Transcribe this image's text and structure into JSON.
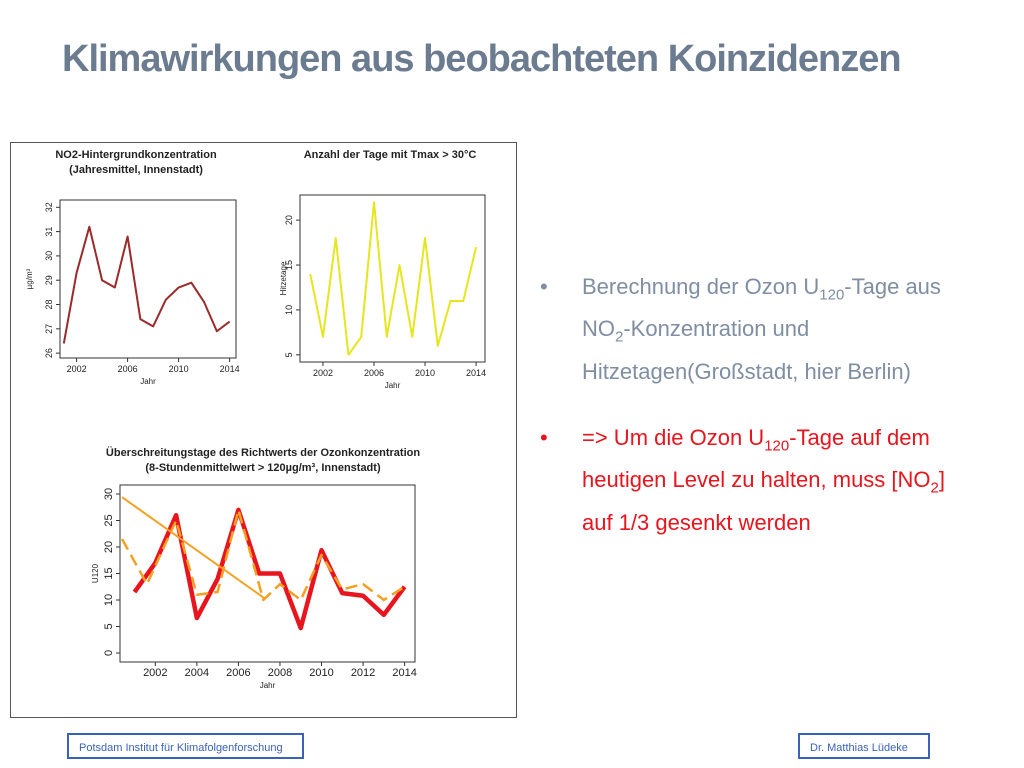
{
  "title": "Klimawirkungen aus beobachteten Koinzidenzen",
  "chart_data": [
    {
      "type": "line",
      "title": [
        "NO2-Hintergrundkonzentration",
        "(Jahresmittel, Innenstadt)"
      ],
      "x_label": "Jahr",
      "y_label": "µg/m³",
      "x": [
        2001,
        2002,
        2003,
        2004,
        2005,
        2006,
        2007,
        2008,
        2009,
        2010,
        2011,
        2012,
        2013,
        2014
      ],
      "series": [
        {
          "color": "#9b2a2a",
          "style": "solid",
          "values": [
            26.4,
            29.3,
            31.2,
            29.0,
            28.7,
            30.8,
            27.4,
            27.1,
            28.2,
            28.7,
            28.9,
            28.1,
            26.9,
            27.3
          ]
        }
      ],
      "xlim": [
        2000.7,
        2014.5
      ],
      "xticks": [
        2002,
        2006,
        2010,
        2014
      ],
      "ylim": [
        25.8,
        32.3
      ],
      "yticks": [
        26,
        27,
        28,
        29,
        30,
        31,
        32
      ]
    },
    {
      "type": "line",
      "title": [
        "Anzahl der Tage mit Tmax > 30°C"
      ],
      "x_label": "Jahr",
      "y_label": "Hitzetage",
      "x": [
        2001,
        2002,
        2003,
        2004,
        2005,
        2006,
        2007,
        2008,
        2009,
        2010,
        2011,
        2012,
        2013,
        2014
      ],
      "series": [
        {
          "color": "#e6e61e",
          "style": "solid",
          "values": [
            14,
            7,
            18,
            5,
            7,
            22,
            7,
            15,
            7,
            18,
            6,
            11,
            11,
            17
          ]
        }
      ],
      "xlim": [
        2000.2,
        2014.7
      ],
      "xticks": [
        2002,
        2006,
        2010,
        2014
      ],
      "ylim": [
        4.2,
        22.8
      ],
      "yticks": [
        5,
        10,
        15,
        20
      ]
    },
    {
      "type": "line",
      "title": [
        "Überschreitungstage des Richtwerts der Ozonkonzentration",
        "(8-Stundenmittelwert > 120µg/m³, Innenstadt)"
      ],
      "x_label": "Jahr",
      "y_label": "U120",
      "x": [
        2001,
        2002,
        2003,
        2004,
        2005,
        2006,
        2007,
        2008,
        2009,
        2010,
        2011,
        2012,
        2013,
        2014
      ],
      "series": [
        {
          "color": "#e8141e",
          "style": "thick",
          "values": [
            11.5,
            17,
            26,
            6.6,
            14,
            27,
            15,
            15,
            4.7,
            19.4,
            11.3,
            10.8,
            7.2,
            12.5
          ]
        },
        {
          "color": "#f5a020",
          "style": "dashed",
          "x": [
            2000.4,
            2001.6,
            2003,
            2004,
            2005,
            2006,
            2007.2,
            2008,
            2009,
            2010,
            2011,
            2012,
            2013,
            2014
          ],
          "values": [
            21.5,
            13,
            25,
            11,
            11.5,
            27,
            10,
            13,
            10,
            18.5,
            12,
            13,
            10,
            12.5
          ]
        },
        {
          "color": "#f5a020",
          "style": "solid",
          "x": [
            2000.4,
            2007.3
          ],
          "values": [
            29.4,
            10.2
          ]
        }
      ],
      "xlim": [
        2000.3,
        2014.5
      ],
      "xticks": [
        2002,
        2004,
        2006,
        2008,
        2010,
        2012,
        2014
      ],
      "ylim": [
        -1.7,
        31.7
      ],
      "yticks": [
        0,
        5,
        10,
        15,
        20,
        25,
        30
      ]
    }
  ],
  "bullets": [
    {
      "color": "#7f8ea3",
      "parts": [
        {
          "text": "Berechnung der Ozon U"
        },
        {
          "sub": "120"
        },
        {
          "text": "-Tage aus NO"
        },
        {
          "sub": "2"
        },
        {
          "text": "-Konzentration und Hitzetagen(Großstadt, hier Berlin)"
        }
      ]
    },
    {
      "color": "#e8141e",
      "parts": [
        {
          "text": "=> Um die Ozon U"
        },
        {
          "sub": "120"
        },
        {
          "text": "-Tage auf dem heutigen Level zu halten, muss [NO"
        },
        {
          "sub": "2"
        },
        {
          "text": "] auf 1/3 gesenkt werden"
        }
      ]
    }
  ],
  "footer": {
    "left": "Potsdam Institut für Klimafolgenforschung",
    "right": "Dr. Matthias Lüdeke"
  }
}
